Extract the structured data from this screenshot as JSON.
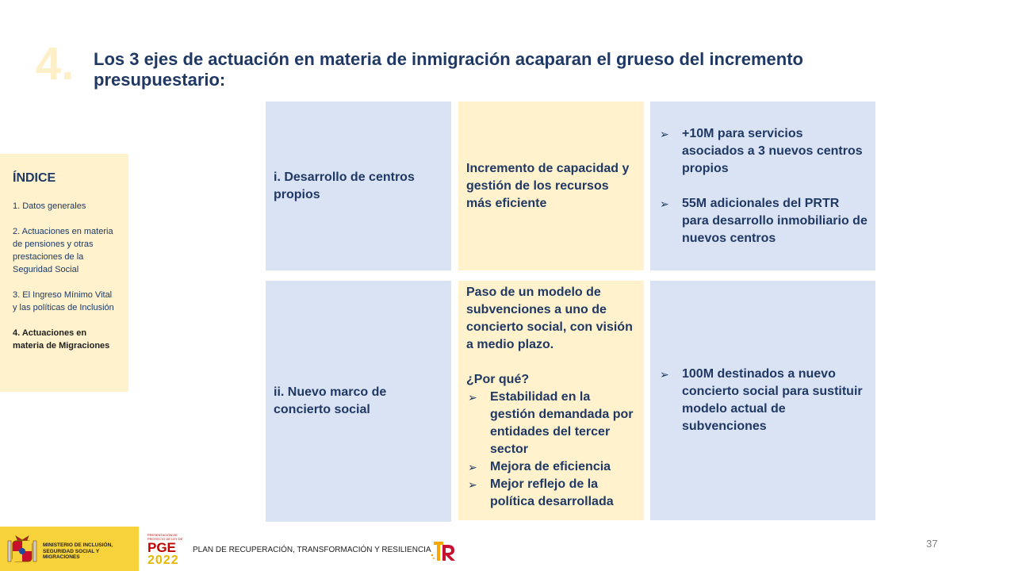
{
  "header": {
    "section_number": "4.",
    "title": "Los 3 ejes de actuación en materia de inmigración acaparan el grueso del incremento presupuestario:"
  },
  "index": {
    "title": "ÍNDICE",
    "items": [
      {
        "label": "1. Datos generales",
        "active": false
      },
      {
        "label": "2. Actuaciones en materia de pensiones y otras prestaciones de la Seguridad Social",
        "active": false
      },
      {
        "label": "3. El Ingreso Mínimo Vital y las políticas de Inclusión",
        "active": false
      },
      {
        "label": "4. Actuaciones en materia de Migraciones",
        "active": true
      }
    ]
  },
  "grid": {
    "row1": {
      "axis": "i. Desarrollo de centros propios",
      "objective": "Incremento de capacidad y gestión de los recursos más eficiente",
      "budget": [
        "+10M para servicios asociados a 3 nuevos centros propios",
        "55M adicionales del PRTR para desarrollo inmobiliario de nuevos centros"
      ]
    },
    "row2": {
      "axis": "ii. Nuevo marco de concierto social",
      "objective_intro": "Paso de un modelo de subvenciones a uno de concierto social, con visión a medio plazo.",
      "objective_question": "¿Por qué?",
      "objective_bullets": [
        "Estabilidad en la gestión demandada por entidades del tercer sector",
        "Mejora de eficiencia",
        "Mejor reflejo de la política desarrollada"
      ],
      "budget": [
        "100M destinados a nuevo concierto social para sustituir modelo actual de subvenciones"
      ]
    }
  },
  "footer": {
    "ministry": "MINISTERIO DE INCLUSIÓN, SEGURIDAD SOCIAL Y MIGRACIONES",
    "pge_small": "PRESENTACIÓN DE PROYECTO DE LEY DE",
    "pge_label": "PGE",
    "pge_year": "2022",
    "plan": "PLAN DE RECUPERACIÓN, TRANSFORMACIÓN Y RESILIENCIA",
    "page_number": "37"
  },
  "colors": {
    "navy": "#1f3864",
    "blue_cell": "#dae3f3",
    "yellow_cell": "#fff2cc",
    "ministry_yellow": "#f8d23a"
  },
  "icons": {
    "bullet": "arrow-bullet-icon",
    "crest": "spain-crest-icon",
    "tr": "recovery-plan-logo-icon"
  }
}
